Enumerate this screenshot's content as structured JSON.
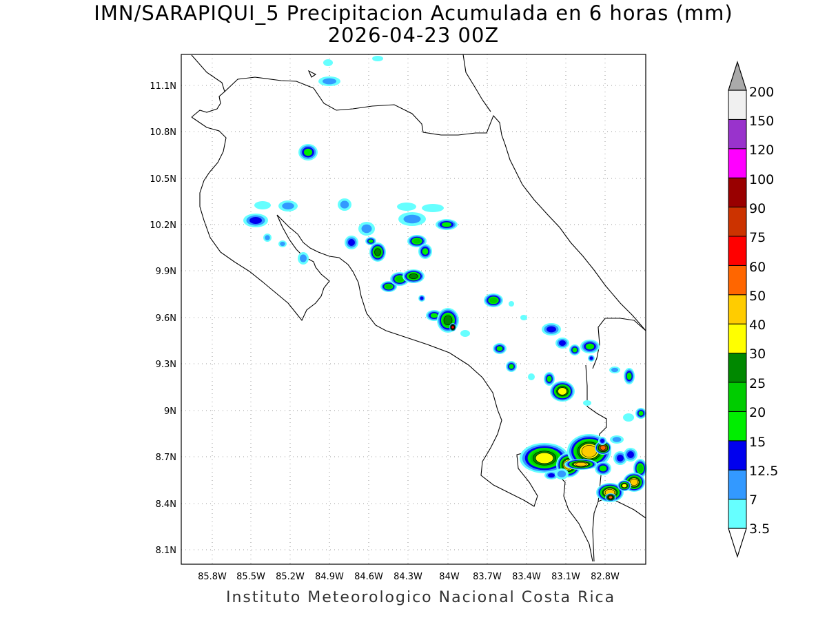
{
  "title": {
    "line1": "IMN/SARAPIQUI_5 Precipitacion Acumulada en 6 horas (mm)",
    "line2": "2026-04-23 00Z"
  },
  "footer": "Instituto Meteorologico Nacional Costa Rica",
  "map": {
    "lon_labels": [
      "85.8W",
      "85.5W",
      "85.2W",
      "84.9W",
      "84.6W",
      "84.3W",
      "84W",
      "83.7W",
      "83.4W",
      "83.1W",
      "82.8W"
    ],
    "lat_labels": [
      "11.1N",
      "10.8N",
      "10.5N",
      "10.2N",
      "9.9N",
      "9.6N",
      "9.3N",
      "9N",
      "8.7N",
      "8.4N",
      "8.1N"
    ]
  },
  "colorbar": {
    "labels": [
      "3.5",
      "7",
      "12.5",
      "15",
      "20",
      "25",
      "30",
      "40",
      "50",
      "60",
      "75",
      "90",
      "100",
      "120",
      "150",
      "200"
    ],
    "colors": [
      "#66ffff",
      "#3399ff",
      "#0000ee",
      "#00ee00",
      "#00cc00",
      "#008800",
      "#ffff00",
      "#ffcc00",
      "#ff6600",
      "#ff0000",
      "#cc3300",
      "#990000",
      "#ff00ff",
      "#9933cc",
      "#f0f0f0"
    ],
    "top_arrow_color": "#aaaaaa"
  }
}
